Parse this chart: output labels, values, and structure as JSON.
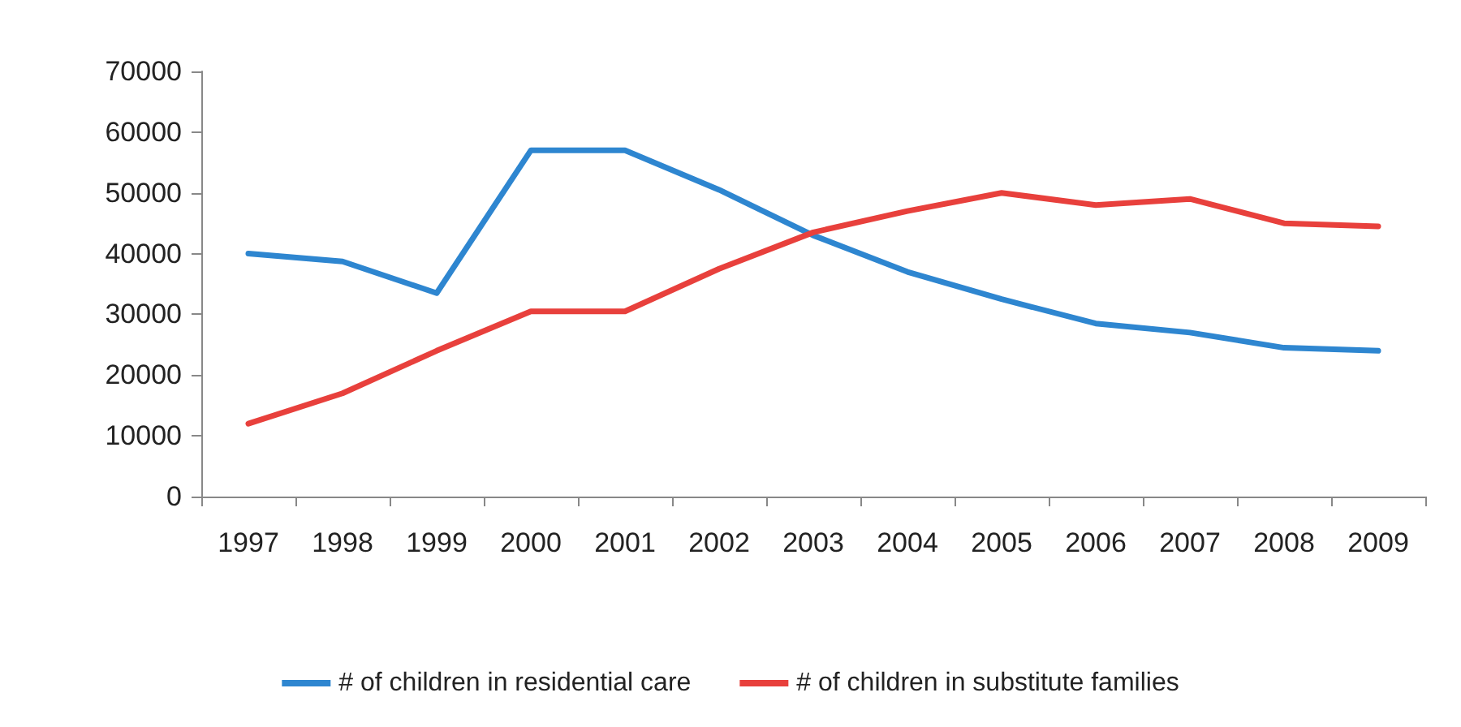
{
  "chart_data": {
    "type": "line",
    "categories": [
      "1997",
      "1998",
      "1999",
      "2000",
      "2001",
      "2002",
      "2003",
      "2004",
      "2005",
      "2006",
      "2007",
      "2008",
      "2009"
    ],
    "series": [
      {
        "name": "# of children in residential care",
        "color": "#2e86d0",
        "values": [
          40000,
          38700,
          33500,
          57000,
          57000,
          50500,
          43000,
          37000,
          32500,
          28500,
          27000,
          24500,
          24000
        ]
      },
      {
        "name": "# of children in substitute families",
        "color": "#e8403c",
        "values": [
          12000,
          17000,
          24000,
          30500,
          30500,
          37500,
          43500,
          47000,
          50000,
          48000,
          49000,
          45000,
          44500
        ]
      }
    ],
    "ylim": [
      0,
      70000
    ],
    "yticks": [
      0,
      10000,
      20000,
      30000,
      40000,
      50000,
      60000,
      70000
    ],
    "grid": false,
    "legend": "bottom",
    "marker": "none",
    "line_style": "solid"
  }
}
